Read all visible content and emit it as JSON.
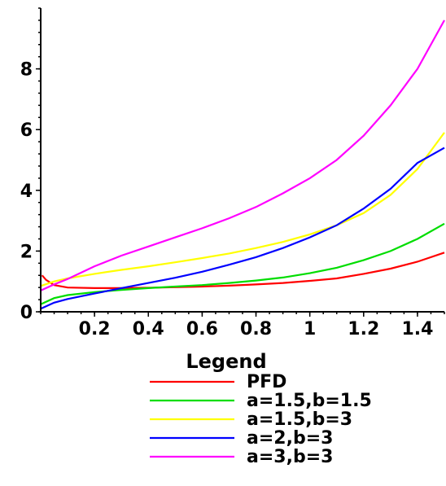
{
  "chart_data": {
    "type": "line",
    "title": "",
    "xlabel": "",
    "ylabel": "",
    "xlim": [
      0,
      1.5
    ],
    "ylim": [
      0,
      10
    ],
    "x_ticks": [
      0.2,
      0.4,
      0.6,
      0.8,
      1,
      1.2,
      1.4
    ],
    "x_tick_labels": [
      "0.2",
      "0.4",
      "0.6",
      "0.8",
      "1",
      "1.2",
      "1.4"
    ],
    "y_ticks": [
      0,
      2,
      4,
      6,
      8
    ],
    "y_tick_labels": [
      "0",
      "2",
      "4",
      "6",
      "8"
    ],
    "grid": false,
    "legend_title": "Legend",
    "legend_position": "bottom",
    "series": [
      {
        "name": "PFD",
        "color": "#ff0000",
        "x": [
          0.005,
          0.02,
          0.05,
          0.1,
          0.2,
          0.3,
          0.4,
          0.5,
          0.6,
          0.7,
          0.8,
          0.9,
          1.0,
          1.1,
          1.2,
          1.3,
          1.4,
          1.5
        ],
        "y": [
          1.2,
          1.05,
          0.88,
          0.8,
          0.78,
          0.78,
          0.79,
          0.81,
          0.83,
          0.86,
          0.9,
          0.95,
          1.02,
          1.1,
          1.25,
          1.42,
          1.65,
          1.95
        ]
      },
      {
        "name": "a=1.5,b=1.5",
        "color": "#00dd00",
        "x": [
          0.0,
          0.05,
          0.1,
          0.2,
          0.3,
          0.4,
          0.5,
          0.6,
          0.7,
          0.8,
          0.9,
          1.0,
          1.1,
          1.2,
          1.3,
          1.4,
          1.5
        ],
        "y": [
          0.25,
          0.45,
          0.55,
          0.65,
          0.72,
          0.78,
          0.83,
          0.88,
          0.95,
          1.03,
          1.13,
          1.27,
          1.45,
          1.7,
          2.0,
          2.4,
          2.9
        ]
      },
      {
        "name": "a=1.5,b=3",
        "color": "#ffff00",
        "x": [
          0.0,
          0.05,
          0.1,
          0.2,
          0.3,
          0.4,
          0.5,
          0.6,
          0.7,
          0.8,
          0.9,
          1.0,
          1.1,
          1.2,
          1.3,
          1.4,
          1.5
        ],
        "y": [
          0.85,
          1.0,
          1.1,
          1.25,
          1.38,
          1.5,
          1.63,
          1.77,
          1.92,
          2.1,
          2.3,
          2.55,
          2.85,
          3.25,
          3.85,
          4.7,
          5.9
        ]
      },
      {
        "name": "a=2,b=3",
        "color": "#0000ff",
        "x": [
          0.0,
          0.05,
          0.1,
          0.2,
          0.3,
          0.4,
          0.5,
          0.6,
          0.7,
          0.8,
          0.9,
          1.0,
          1.1,
          1.2,
          1.3,
          1.4,
          1.5
        ],
        "y": [
          0.1,
          0.3,
          0.42,
          0.6,
          0.78,
          0.95,
          1.12,
          1.32,
          1.55,
          1.8,
          2.1,
          2.45,
          2.85,
          3.4,
          4.05,
          4.9,
          5.4
        ]
      },
      {
        "name": "a=3,b=3",
        "color": "#ff00ff",
        "x": [
          0.0,
          0.05,
          0.1,
          0.2,
          0.3,
          0.4,
          0.5,
          0.6,
          0.7,
          0.8,
          0.9,
          1.0,
          1.1,
          1.2,
          1.3,
          1.4,
          1.5
        ],
        "y": [
          0.7,
          0.9,
          1.08,
          1.5,
          1.85,
          2.15,
          2.45,
          2.75,
          3.08,
          3.45,
          3.9,
          4.4,
          5.0,
          5.8,
          6.8,
          8.0,
          9.6
        ]
      }
    ]
  }
}
